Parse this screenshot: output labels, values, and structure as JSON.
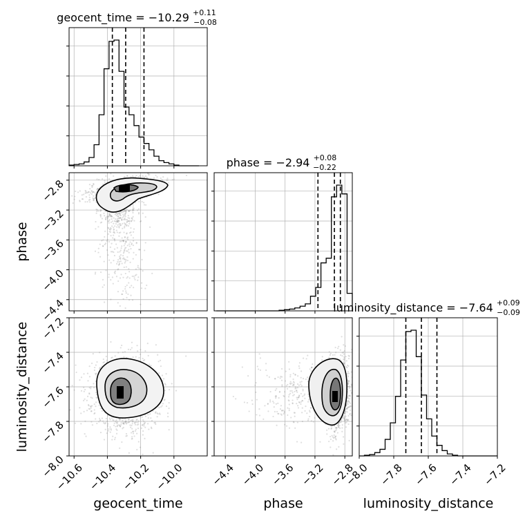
{
  "chart_data": {
    "type": "corner",
    "parameters": [
      "geocent_time",
      "phase",
      "luminosity_distance"
    ],
    "axis_labels": {
      "geocent_time": "geocent_time",
      "phase": "phase",
      "luminosity_distance": "luminosity_distance"
    },
    "ranges": {
      "geocent_time": [
        -10.63,
        -9.8
      ],
      "phase": [
        -4.55,
        -2.7
      ],
      "luminosity_distance": [
        -8.0,
        -7.2
      ]
    },
    "ticks": {
      "geocent_time": {
        "values": [
          -10.6,
          -10.4,
          -10.2,
          -10.0
        ],
        "labels": [
          "−10.6",
          "−10.4",
          "−10.2",
          "−10.0"
        ]
      },
      "phase": {
        "values": [
          -4.4,
          -4.0,
          -3.6,
          -3.2,
          -2.8
        ],
        "labels": [
          "−4.4",
          "−4.0",
          "−3.6",
          "−3.2",
          "−2.8"
        ]
      },
      "luminosity_distance": {
        "values": [
          -8.0,
          -7.8,
          -7.6,
          -7.4,
          -7.2
        ],
        "labels": [
          "−8.0",
          "−7.8",
          "−7.6",
          "−7.4",
          "−7.2"
        ]
      }
    },
    "grid": true,
    "titles": {
      "geocent_time": {
        "text": "geocent_time = −10.29",
        "plus": "+0.11",
        "minus": "−0.08"
      },
      "phase": {
        "text": "phase = −2.94",
        "plus": "+0.08",
        "minus": "−0.22"
      },
      "luminosity_distance": {
        "text": "luminosity_distance = −7.64",
        "plus": "+0.09",
        "minus": "−0.09"
      }
    },
    "quantiles": {
      "geocent_time": [
        -10.37,
        -10.29,
        -10.18
      ],
      "phase": [
        -3.16,
        -2.94,
        -2.86
      ],
      "luminosity_distance": [
        -7.73,
        -7.64,
        -7.55
      ]
    },
    "histograms": {
      "geocent_time": {
        "edges": [
          -10.63,
          -10.6,
          -10.57,
          -10.54,
          -10.51,
          -10.48,
          -10.45,
          -10.42,
          -10.39,
          -10.36,
          -10.33,
          -10.3,
          -10.27,
          -10.24,
          -10.21,
          -10.18,
          -10.15,
          -10.12,
          -10.09,
          -10.06,
          -10.03,
          -10.0,
          -9.97,
          -9.94,
          -9.91,
          -9.88,
          -9.85
        ],
        "counts": [
          1,
          2,
          3,
          6,
          13,
          33,
          80,
          152,
          195,
          197,
          148,
          92,
          80,
          63,
          45,
          35,
          25,
          15,
          8,
          5,
          3,
          1,
          0,
          0,
          0,
          0
        ]
      },
      "phase": {
        "edges": [
          -4.52,
          -4.45,
          -4.38,
          -4.31,
          -4.24,
          -4.17,
          -4.1,
          -4.03,
          -3.96,
          -3.89,
          -3.82,
          -3.75,
          -3.68,
          -3.61,
          -3.54,
          -3.47,
          -3.4,
          -3.33,
          -3.26,
          -3.19,
          -3.12,
          -3.05,
          -2.98,
          -2.91,
          -2.84,
          -2.77,
          -2.7
        ],
        "counts": [
          0,
          0,
          0,
          0,
          0,
          0,
          0,
          0,
          0,
          0,
          0,
          0,
          1,
          2,
          3,
          5,
          8,
          12,
          25,
          40,
          82,
          90,
          195,
          215,
          200,
          30
        ]
      },
      "luminosity_distance": {
        "edges": [
          -8.0,
          -7.97,
          -7.94,
          -7.91,
          -7.88,
          -7.85,
          -7.82,
          -7.79,
          -7.76,
          -7.73,
          -7.7,
          -7.67,
          -7.64,
          -7.61,
          -7.58,
          -7.55,
          -7.52,
          -7.49,
          -7.46,
          -7.43,
          -7.4,
          -7.37,
          -7.34,
          -7.31,
          -7.28,
          -7.25,
          -7.22,
          -7.2
        ],
        "counts": [
          0,
          1,
          2,
          5,
          10,
          25,
          50,
          90,
          145,
          188,
          190,
          150,
          92,
          56,
          30,
          16,
          8,
          3,
          1,
          0,
          0,
          0,
          0,
          0,
          0,
          0,
          0
        ]
      }
    },
    "pairs": [
      {
        "x": "geocent_time",
        "y": "phase"
      },
      {
        "x": "geocent_time",
        "y": "luminosity_distance"
      },
      {
        "x": "phase",
        "y": "luminosity_distance"
      }
    ],
    "sample_color": "#888888",
    "line_color": "#000000"
  }
}
